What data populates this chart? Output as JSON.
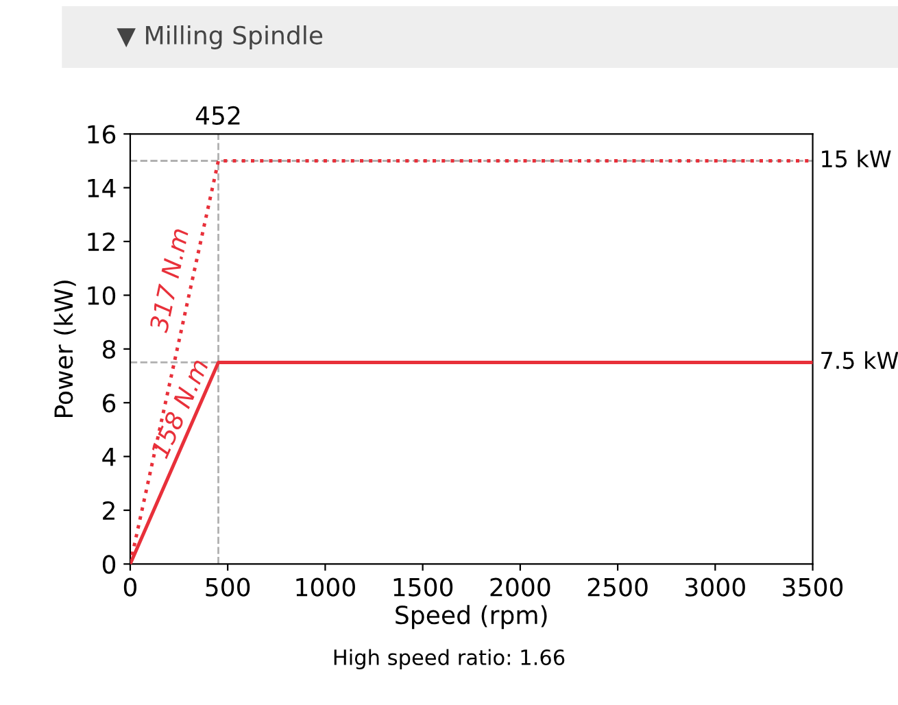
{
  "chart_data": {
    "type": "line",
    "title": "▼ Milling Spindle",
    "xlabel": "Speed (rpm)",
    "ylabel": "Power (kW)",
    "series": [
      {
        "color": "#e8303a",
        "line_style": "dotted",
        "x": [
          0,
          452,
          3500
        ],
        "values": [
          0,
          15,
          15
        ]
      },
      {
        "color": "#e8303a",
        "line_style": "solid",
        "x": [
          0,
          452,
          3500
        ],
        "values": [
          0,
          7.5,
          7.5
        ]
      }
    ],
    "xlim": [
      0,
      3500
    ],
    "xticks": [
      0,
      500,
      1000,
      1500,
      2000,
      2500,
      3000,
      3500
    ],
    "ylim": [
      0,
      16
    ],
    "yticks": [
      0,
      2,
      4,
      6,
      8,
      10,
      12,
      14,
      16
    ],
    "ref_lines": [
      {
        "axis": "x",
        "value": 452,
        "label": "452",
        "color": "#b0b0b0",
        "line_style": "dashed"
      },
      {
        "axis": "y",
        "value": 15,
        "label": "15 kW",
        "color": "#b0b0b0",
        "line_style": "dashed"
      },
      {
        "axis": "y",
        "value": 7.5,
        "label": "7.5 kW",
        "color": "#b0b0b0",
        "line_style": "dashed"
      }
    ],
    "annotations": [
      "317 N.m",
      "158 N.m",
      "High speed ratio: 1.66"
    ],
    "grid": false,
    "marker": "none"
  }
}
